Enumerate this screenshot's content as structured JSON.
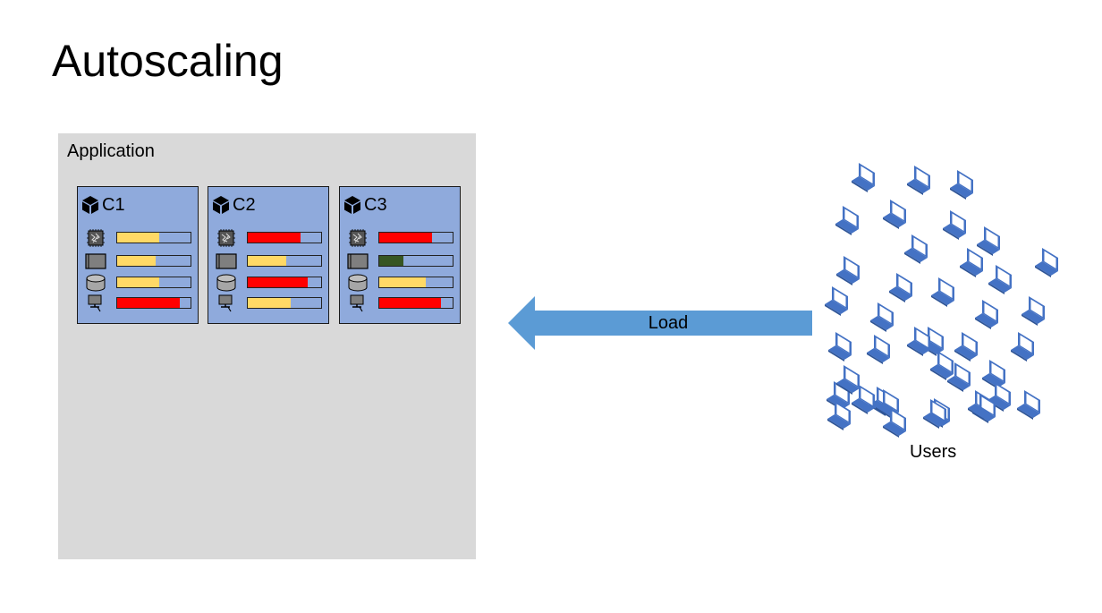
{
  "title": "Autoscaling",
  "application": {
    "label": "Application",
    "containers": [
      {
        "name": "C1",
        "metrics": [
          {
            "icon": "cpu-icon",
            "level": 0.57,
            "color": "#ffd966"
          },
          {
            "icon": "memory-icon",
            "level": 0.53,
            "color": "#ffd966"
          },
          {
            "icon": "disk-icon",
            "level": 0.57,
            "color": "#ffd966"
          },
          {
            "icon": "network-icon",
            "level": 0.85,
            "color": "#ff0000"
          }
        ]
      },
      {
        "name": "C2",
        "metrics": [
          {
            "icon": "cpu-icon",
            "level": 0.72,
            "color": "#ff0000"
          },
          {
            "icon": "memory-icon",
            "level": 0.53,
            "color": "#ffd966"
          },
          {
            "icon": "disk-icon",
            "level": 0.82,
            "color": "#ff0000"
          },
          {
            "icon": "network-icon",
            "level": 0.58,
            "color": "#ffd966"
          }
        ]
      },
      {
        "name": "C3",
        "metrics": [
          {
            "icon": "cpu-icon",
            "level": 0.72,
            "color": "#ff0000"
          },
          {
            "icon": "memory-icon",
            "level": 0.33,
            "color": "#375623"
          },
          {
            "icon": "disk-icon",
            "level": 0.63,
            "color": "#ffd966"
          },
          {
            "icon": "network-icon",
            "level": 0.84,
            "color": "#ff0000"
          }
        ]
      }
    ]
  },
  "load_arrow": {
    "label": "Load",
    "color": "#5b9bd5"
  },
  "users": {
    "label": "Users",
    "count": 40,
    "icon": "laptop-icon",
    "color": "#4472c4"
  }
}
